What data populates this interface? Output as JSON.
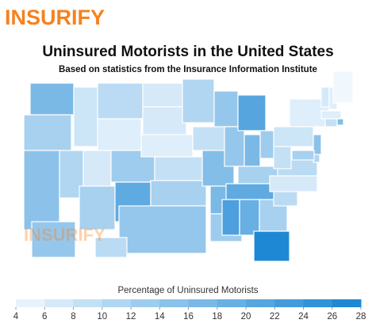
{
  "logo": "INSURIFY",
  "chart_data": {
    "type": "choropleth",
    "title": "Uninsured Motorists in the United States",
    "subtitle": "Based on statistics from the Insurance Information Institute",
    "legend_title": "Percentage of Uninsured Motorists",
    "colormap": [
      "#f0f8fe",
      "#1683d2"
    ],
    "clim": [
      4,
      28
    ],
    "ticks": [
      4,
      6,
      8,
      10,
      12,
      14,
      16,
      18,
      20,
      22,
      24,
      26,
      28
    ],
    "values": [
      17,
      12,
      15,
      11,
      8,
      10,
      6,
      7,
      12,
      13,
      20,
      7,
      7,
      6,
      9,
      12,
      14,
      11,
      9,
      16,
      17,
      13,
      14,
      14,
      21,
      17,
      13,
      12,
      20,
      22,
      19,
      12,
      27,
      10,
      7,
      10,
      9,
      8,
      6,
      7,
      6,
      4,
      6,
      16,
      9,
      15,
      11,
      12,
      14,
      10
    ]
  }
}
